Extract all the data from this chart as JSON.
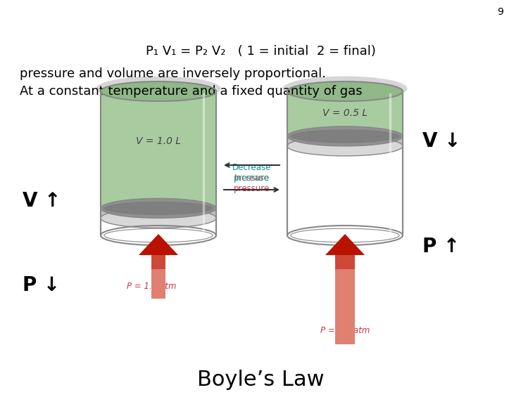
{
  "title": "Boyle’s Law",
  "title_fontsize": 22,
  "title_fontweight": "normal",
  "bg_color": "#ffffff",
  "text_color": "#000000",
  "label_P_down": "P ↓",
  "label_V_up": "V ↑",
  "label_P_up": "P ↑",
  "label_V_down": "V ↓",
  "label_fontsize": 20,
  "p1_label": "P = 1.0 atm",
  "p2_label": "P = 2.0 atm",
  "v1_label": "V = 1.0 L",
  "v2_label": "V = 0.5 L",
  "small_label_color": "#cc3344",
  "v_label_color": "#555555",
  "increase_pressure": "Increase\npressure",
  "decrease_pressure": "Decrease\npressure",
  "increase_color": "#cc3344",
  "decrease_color": "#009999",
  "body_text1": "At a constant temperature and a fixed quantity of gas",
  "body_text2": "pressure and volume are inversely proportional.",
  "body_fontsize": 13,
  "formula_text": "P₁ V₁ = P₂ V₂   ( 1 = initial  2 = final)",
  "formula_fontsize": 13,
  "page_num": "9",
  "cylinder_color_top": "#b8d4b0",
  "cylinder_color_bot": "#7aaa70",
  "cylinder_stroke": "#888888",
  "piston_color": "#b8b8b8",
  "piston_dark": "#888888",
  "arrow_red_dark": "#bb1100",
  "arrow_red_light": "#e08070"
}
